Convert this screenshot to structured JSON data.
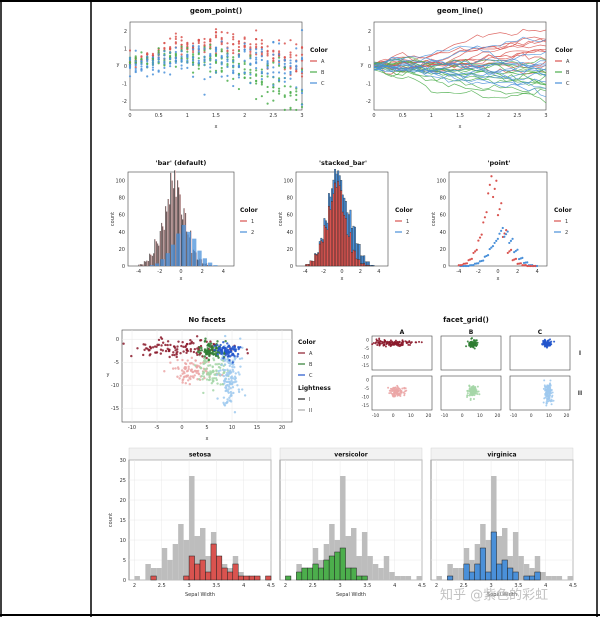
{
  "watermark": "知乎 @紫色的彩虹",
  "colors": {
    "A": "#d9534f",
    "B": "#4cae4c",
    "C": "#4a90d9",
    "grey": "#bdbdbd",
    "dark": "#8b1a2b",
    "darkGreen": "#2e7d32",
    "darkBlue": "#2255cc",
    "pinkLight": "#eba6a6",
    "greenLight": "#a5d6a7",
    "blueLight": "#9ec9ee"
  },
  "chart_data": [
    {
      "id": "geom_point",
      "type": "scatter",
      "title": "geom_point()",
      "xlabel": "x",
      "ylabel": "y",
      "xticks": [
        "0",
        "0.5",
        "1",
        "1.5",
        "2",
        "2.5",
        "3"
      ],
      "yticks": [
        "2",
        "1",
        "0",
        "-1",
        "-2"
      ],
      "xlim": [
        0,
        3
      ],
      "ylim": [
        -2.5,
        2.5
      ],
      "legend_title": "Color",
      "legend": [
        "A",
        "B",
        "C"
      ]
    },
    {
      "id": "geom_line",
      "type": "line",
      "title": "geom_line()",
      "xlabel": "x",
      "ylabel": "y",
      "xticks": [
        "0",
        "0.5",
        "1",
        "1.5",
        "2",
        "2.5",
        "3"
      ],
      "yticks": [
        "2",
        "1",
        "0",
        "-1",
        "-2"
      ],
      "xlim": [
        0,
        3
      ],
      "ylim": [
        -2.5,
        2.5
      ],
      "legend_title": "Color",
      "legend": [
        "A",
        "B",
        "C"
      ]
    },
    {
      "id": "hist_bar",
      "type": "bar",
      "title": "'bar' (default)",
      "xlabel": "x",
      "ylabel": "count",
      "xticks": [
        "-4",
        "-2",
        "0",
        "2",
        "4"
      ],
      "yticks": [
        "100",
        "80",
        "60",
        "40",
        "20",
        "0"
      ],
      "xlim": [
        -5,
        5
      ],
      "ylim": [
        0,
        110
      ],
      "legend_title": "Color",
      "legend": [
        "1",
        "2"
      ],
      "bins": [
        -4,
        -3.5,
        -3,
        -2.5,
        -2,
        -1.5,
        -1,
        -0.5,
        0,
        0.5,
        1,
        1.5,
        2,
        2.5,
        3,
        3.5
      ],
      "series": [
        {
          "name": "1",
          "values": [
            2,
            6,
            14,
            28,
            45,
            70,
            100,
            92,
            62,
            38,
            18,
            8,
            3,
            1,
            0,
            0
          ]
        },
        {
          "name": "2",
          "values": [
            0,
            0,
            1,
            3,
            8,
            15,
            25,
            38,
            48,
            40,
            32,
            18,
            9,
            4,
            1,
            0
          ]
        }
      ]
    },
    {
      "id": "hist_stacked",
      "type": "bar",
      "title": "'stacked_bar'",
      "xlabel": "x",
      "ylabel": "count",
      "xticks": [
        "-4",
        "-2",
        "0",
        "2",
        "4"
      ],
      "yticks": [
        "100",
        "80",
        "60",
        "40",
        "20",
        "0"
      ],
      "xlim": [
        -5,
        5
      ],
      "ylim": [
        0,
        110
      ],
      "legend_title": "Color",
      "legend": [
        "1",
        "2"
      ],
      "bins": [
        -4,
        -3.5,
        -3,
        -2.5,
        -2,
        -1.5,
        -1,
        -0.5,
        0,
        0.5,
        1,
        1.5,
        2,
        2.5,
        3,
        3.5
      ],
      "series": [
        {
          "name": "1",
          "values": [
            2,
            6,
            14,
            28,
            45,
            70,
            90,
            92,
            62,
            38,
            18,
            8,
            3,
            1,
            0,
            0
          ]
        },
        {
          "name": "2",
          "values": [
            0,
            0,
            1,
            3,
            8,
            15,
            16,
            12,
            20,
            26,
            28,
            18,
            9,
            4,
            1,
            0
          ]
        }
      ]
    },
    {
      "id": "hist_point",
      "type": "scatter",
      "title": "'point'",
      "xlabel": "x",
      "ylabel": "count",
      "xticks": [
        "-4",
        "-2",
        "0",
        "2",
        "4"
      ],
      "yticks": [
        "100",
        "80",
        "60",
        "40",
        "20",
        "0"
      ],
      "xlim": [
        -5,
        5
      ],
      "ylim": [
        0,
        110
      ],
      "legend_title": "Color",
      "legend": [
        "1",
        "2"
      ],
      "bins": [
        -4,
        -3.5,
        -3,
        -2.5,
        -2,
        -1.5,
        -1,
        -0.5,
        0,
        0.5,
        1,
        1.5,
        2,
        2.5,
        3,
        3.5
      ],
      "series": [
        {
          "name": "1",
          "values": [
            1,
            3,
            8,
            18,
            35,
            60,
            100,
            95,
            70,
            40,
            18,
            8,
            3,
            1,
            0,
            0
          ]
        },
        {
          "name": "2",
          "values": [
            0,
            0,
            1,
            3,
            6,
            12,
            22,
            30,
            42,
            38,
            30,
            18,
            9,
            4,
            1,
            0
          ]
        }
      ]
    },
    {
      "id": "no_facets",
      "type": "scatter",
      "title": "No facets",
      "xlabel": "x",
      "ylabel": "y",
      "xticks": [
        "-10",
        "-5",
        "0",
        "5",
        "10",
        "15",
        "20"
      ],
      "yticks": [
        "0",
        "-5",
        "-10",
        "-15"
      ],
      "xlim": [
        -12,
        22
      ],
      "ylim": [
        -18,
        2
      ],
      "legend_title": "Color",
      "legend": [
        "A",
        "B",
        "C"
      ],
      "legend2_title": "Lightness",
      "legend2": [
        "I",
        "II"
      ]
    },
    {
      "id": "facet_grid",
      "type": "scatter",
      "title": "facet_grid()",
      "col_labels": [
        "A",
        "B",
        "C"
      ],
      "row_labels": [
        "I",
        "II"
      ],
      "xticks": [
        "-10",
        "0",
        "10",
        "20"
      ],
      "yticks": [
        "0",
        "-5",
        "-10",
        "-15"
      ],
      "xlim": [
        -12,
        22
      ],
      "ylim": [
        -18,
        2
      ]
    },
    {
      "id": "iris",
      "type": "bar",
      "xlabel": "Sepal Width",
      "ylabel": "count",
      "facets": [
        "setosa",
        "versicolor",
        "virginica"
      ],
      "xticks": [
        "2",
        "2.5",
        "3",
        "3.5",
        "4",
        "4.5"
      ],
      "yticks": [
        "30",
        "25",
        "20",
        "15",
        "10",
        "5",
        "0"
      ],
      "xlim": [
        1.9,
        4.5
      ],
      "ylim": [
        0,
        30
      ],
      "bins": [
        2.0,
        2.1,
        2.2,
        2.3,
        2.4,
        2.5,
        2.6,
        2.7,
        2.8,
        2.9,
        3.0,
        3.1,
        3.2,
        3.3,
        3.4,
        3.5,
        3.6,
        3.7,
        3.8,
        3.9,
        4.0,
        4.1,
        4.2,
        4.3,
        4.4
      ],
      "all_values": [
        1,
        0,
        4,
        3,
        3,
        8,
        5,
        9,
        14,
        10,
        26,
        11,
        13,
        6,
        12,
        6,
        4,
        3,
        6,
        2,
        1,
        1,
        1,
        0,
        1
      ],
      "series": [
        {
          "name": "setosa",
          "values": [
            0,
            0,
            0,
            1,
            0,
            0,
            0,
            0,
            0,
            1,
            6,
            4,
            5,
            2,
            9,
            6,
            3,
            2,
            4,
            1,
            1,
            1,
            1,
            0,
            1
          ]
        },
        {
          "name": "versicolor",
          "values": [
            1,
            0,
            2,
            3,
            3,
            4,
            3,
            5,
            6,
            7,
            8,
            3,
            3,
            1,
            1,
            0,
            0,
            0,
            0,
            0,
            0,
            0,
            0,
            0,
            0
          ]
        },
        {
          "name": "virginica",
          "values": [
            0,
            0,
            1,
            0,
            0,
            4,
            2,
            4,
            8,
            2,
            12,
            4,
            5,
            3,
            2,
            0,
            1,
            1,
            2,
            0,
            0,
            0,
            0,
            0,
            0
          ]
        }
      ]
    }
  ]
}
